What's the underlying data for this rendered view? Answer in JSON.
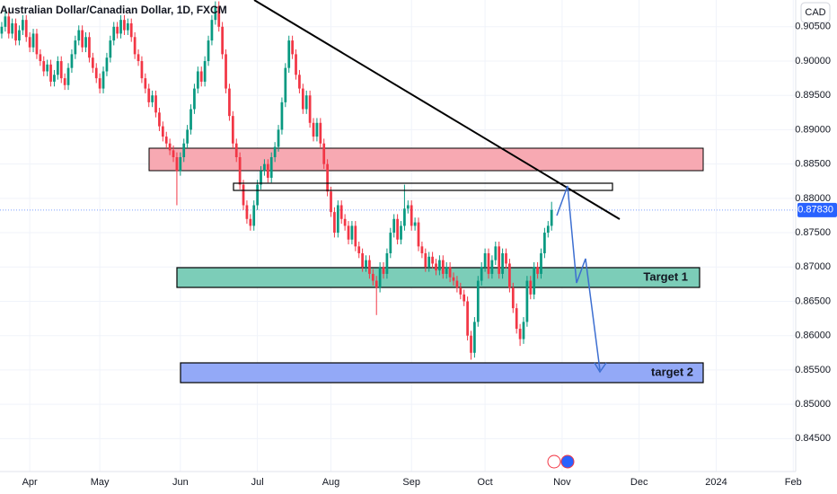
{
  "chart_data": {
    "type": "candlestick",
    "title": "Australian Dollar/Canadian Dollar, 1D, FXCM",
    "currency": "CAD",
    "up_color": "#089981",
    "down_color": "#f23645",
    "grid": true,
    "ylim": [
      0.8402,
      0.9089
    ],
    "yticks": [
      {
        "value": 0.845,
        "label": "0.84500"
      },
      {
        "value": 0.85,
        "label": "0.85000"
      },
      {
        "value": 0.855,
        "label": "0.85500"
      },
      {
        "value": 0.86,
        "label": "0.86000"
      },
      {
        "value": 0.865,
        "label": "0.86500"
      },
      {
        "value": 0.87,
        "label": "0.87000"
      },
      {
        "value": 0.875,
        "label": "0.87500"
      },
      {
        "value": 0.88,
        "label": "0.88000"
      },
      {
        "value": 0.885,
        "label": "0.88500"
      },
      {
        "value": 0.89,
        "label": "0.89000"
      },
      {
        "value": 0.895,
        "label": "0.89500"
      },
      {
        "value": 0.9,
        "label": "0.90000"
      },
      {
        "value": 0.905,
        "label": "0.90500"
      }
    ],
    "xlim": [
      -0.5,
      226.7
    ],
    "xticks": [
      {
        "value": 8,
        "label": "Apr"
      },
      {
        "value": 28,
        "label": "May"
      },
      {
        "value": 51,
        "label": "Jun"
      },
      {
        "value": 73,
        "label": "Jul"
      },
      {
        "value": 94,
        "label": "Aug"
      },
      {
        "value": 117,
        "label": "Sep"
      },
      {
        "value": 138,
        "label": "Oct"
      },
      {
        "value": 160,
        "label": "Nov"
      },
      {
        "value": 182,
        "label": "Dec"
      },
      {
        "value": 204,
        "label": "2024"
      },
      {
        "value": 226,
        "label": "Feb"
      }
    ],
    "last_price": {
      "value": 0.8783,
      "label": "0.87830"
    },
    "annotations": [
      "Target 1",
      "target 2"
    ],
    "candles": [
      [
        0.904,
        0.9057,
        0.9033,
        0.905
      ],
      [
        0.905,
        0.9072,
        0.9043,
        0.9065
      ],
      [
        0.9065,
        0.9072,
        0.9033,
        0.904
      ],
      [
        0.904,
        0.9062,
        0.9033,
        0.9055
      ],
      [
        0.9055,
        0.9062,
        0.9023,
        0.903
      ],
      [
        0.903,
        0.9052,
        0.9023,
        0.9045
      ],
      [
        0.9045,
        0.9067,
        0.9038,
        0.906
      ],
      [
        0.906,
        0.9067,
        0.9028,
        0.9035
      ],
      [
        0.9035,
        0.9042,
        0.9013,
        0.902
      ],
      [
        0.902,
        0.9047,
        0.9013,
        0.904
      ],
      [
        0.904,
        0.9047,
        0.9003,
        0.901
      ],
      [
        0.901,
        0.9017,
        0.8993,
        0.9
      ],
      [
        0.9,
        0.9007,
        0.8978,
        0.8985
      ],
      [
        0.8985,
        0.9002,
        0.8978,
        0.8995
      ],
      [
        0.8995,
        0.9002,
        0.8963,
        0.897
      ],
      [
        0.897,
        0.8987,
        0.8963,
        0.898
      ],
      [
        0.898,
        0.9007,
        0.8973,
        0.9
      ],
      [
        0.9,
        0.9007,
        0.8968,
        0.8975
      ],
      [
        0.8975,
        0.8982,
        0.8958,
        0.8965
      ],
      [
        0.8965,
        0.8997,
        0.8958,
        0.899
      ],
      [
        0.899,
        0.9017,
        0.8983,
        0.901
      ],
      [
        0.901,
        0.9037,
        0.9003,
        0.903
      ],
      [
        0.903,
        0.9052,
        0.9023,
        0.9045
      ],
      [
        0.9045,
        0.9052,
        0.9013,
        0.902
      ],
      [
        0.902,
        0.9042,
        0.9013,
        0.9035
      ],
      [
        0.9035,
        0.9042,
        0.8998,
        0.9005
      ],
      [
        0.9005,
        0.9012,
        0.8983,
        0.899
      ],
      [
        0.899,
        0.8997,
        0.8968,
        0.8975
      ],
      [
        0.8975,
        0.8982,
        0.8953,
        0.896
      ],
      [
        0.896,
        0.8992,
        0.8953,
        0.8985
      ],
      [
        0.8985,
        0.9012,
        0.8978,
        0.9005
      ],
      [
        0.9005,
        0.9037,
        0.8998,
        0.903
      ],
      [
        0.903,
        0.9057,
        0.9023,
        0.905
      ],
      [
        0.905,
        0.9057,
        0.9033,
        0.904
      ],
      [
        0.904,
        0.9067,
        0.9033,
        0.906
      ],
      [
        0.906,
        0.9067,
        0.9038,
        0.9045
      ],
      [
        0.9045,
        0.9062,
        0.9038,
        0.9055
      ],
      [
        0.9055,
        0.9062,
        0.9028,
        0.9035
      ],
      [
        0.9035,
        0.9042,
        0.9003,
        0.901
      ],
      [
        0.901,
        0.9017,
        0.8993,
        0.9
      ],
      [
        0.9,
        0.9007,
        0.8968,
        0.8975
      ],
      [
        0.8975,
        0.8982,
        0.8953,
        0.896
      ],
      [
        0.896,
        0.8967,
        0.8933,
        0.894
      ],
      [
        0.894,
        0.8957,
        0.8933,
        0.895
      ],
      [
        0.895,
        0.8957,
        0.8918,
        0.8925
      ],
      [
        0.8925,
        0.8932,
        0.8898,
        0.8905
      ],
      [
        0.8905,
        0.8912,
        0.8883,
        0.889
      ],
      [
        0.889,
        0.8897,
        0.8873,
        0.888
      ],
      [
        0.888,
        0.8887,
        0.8863,
        0.887
      ],
      [
        0.887,
        0.8877,
        0.8853,
        0.886
      ],
      [
        0.886,
        0.8867,
        0.879,
        0.884
      ],
      [
        0.884,
        0.8867,
        0.8833,
        0.886
      ],
      [
        0.886,
        0.8887,
        0.8853,
        0.888
      ],
      [
        0.888,
        0.8907,
        0.8873,
        0.89
      ],
      [
        0.89,
        0.8937,
        0.8893,
        0.893
      ],
      [
        0.893,
        0.8967,
        0.8923,
        0.896
      ],
      [
        0.896,
        0.8992,
        0.8953,
        0.8985
      ],
      [
        0.8985,
        0.8992,
        0.8963,
        0.897
      ],
      [
        0.897,
        0.9007,
        0.8963,
        0.9
      ],
      [
        0.9,
        0.9037,
        0.8993,
        0.903
      ],
      [
        0.903,
        0.9067,
        0.9023,
        0.906
      ],
      [
        0.906,
        0.9087,
        0.9053,
        0.908
      ],
      [
        0.908,
        0.9087,
        0.9043,
        0.905
      ],
      [
        0.905,
        0.9057,
        0.9003,
        0.901
      ],
      [
        0.901,
        0.9017,
        0.8953,
        0.896
      ],
      [
        0.896,
        0.8967,
        0.8913,
        0.892
      ],
      [
        0.892,
        0.8927,
        0.8873,
        0.888
      ],
      [
        0.888,
        0.8887,
        0.8853,
        0.886
      ],
      [
        0.886,
        0.8867,
        0.8813,
        0.882
      ],
      [
        0.882,
        0.8827,
        0.8783,
        0.879
      ],
      [
        0.879,
        0.8797,
        0.8763,
        0.877
      ],
      [
        0.877,
        0.8777,
        0.8753,
        0.876
      ],
      [
        0.876,
        0.8797,
        0.8753,
        0.879
      ],
      [
        0.879,
        0.8827,
        0.8783,
        0.882
      ],
      [
        0.882,
        0.8847,
        0.8813,
        0.884
      ],
      [
        0.884,
        0.8857,
        0.8833,
        0.885
      ],
      [
        0.885,
        0.8857,
        0.8823,
        0.883
      ],
      [
        0.883,
        0.8867,
        0.8823,
        0.886
      ],
      [
        0.886,
        0.8882,
        0.8853,
        0.8875
      ],
      [
        0.8875,
        0.8907,
        0.8868,
        0.89
      ],
      [
        0.89,
        0.8947,
        0.8893,
        0.894
      ],
      [
        0.894,
        0.8997,
        0.8933,
        0.899
      ],
      [
        0.899,
        0.9037,
        0.8983,
        0.903
      ],
      [
        0.903,
        0.9037,
        0.9003,
        0.901
      ],
      [
        0.901,
        0.9017,
        0.8973,
        0.898
      ],
      [
        0.898,
        0.8987,
        0.8953,
        0.896
      ],
      [
        0.896,
        0.8967,
        0.8923,
        0.893
      ],
      [
        0.893,
        0.8957,
        0.8923,
        0.895
      ],
      [
        0.895,
        0.8957,
        0.8903,
        0.891
      ],
      [
        0.891,
        0.8917,
        0.8883,
        0.889
      ],
      [
        0.889,
        0.8917,
        0.8883,
        0.891
      ],
      [
        0.891,
        0.8917,
        0.8873,
        0.888
      ],
      [
        0.888,
        0.8887,
        0.8843,
        0.885
      ],
      [
        0.885,
        0.8857,
        0.8803,
        0.881
      ],
      [
        0.881,
        0.8817,
        0.8773,
        0.878
      ],
      [
        0.878,
        0.8787,
        0.8743,
        0.875
      ],
      [
        0.875,
        0.8797,
        0.8743,
        0.879
      ],
      [
        0.879,
        0.8797,
        0.8763,
        0.877
      ],
      [
        0.877,
        0.8777,
        0.8753,
        0.876
      ],
      [
        0.876,
        0.8767,
        0.8733,
        0.874
      ],
      [
        0.874,
        0.8767,
        0.8733,
        0.876
      ],
      [
        0.876,
        0.8767,
        0.8723,
        0.873
      ],
      [
        0.873,
        0.8737,
        0.8713,
        0.872
      ],
      [
        0.872,
        0.8727,
        0.8693,
        0.87
      ],
      [
        0.87,
        0.8717,
        0.8693,
        0.871
      ],
      [
        0.871,
        0.8717,
        0.8683,
        0.869
      ],
      [
        0.869,
        0.8697,
        0.8673,
        0.868
      ],
      [
        0.868,
        0.8687,
        0.863,
        0.867
      ],
      [
        0.867,
        0.8707,
        0.8663,
        0.87
      ],
      [
        0.87,
        0.8707,
        0.8683,
        0.869
      ],
      [
        0.869,
        0.8727,
        0.8683,
        0.872
      ],
      [
        0.872,
        0.8757,
        0.8713,
        0.875
      ],
      [
        0.875,
        0.8777,
        0.8743,
        0.877
      ],
      [
        0.877,
        0.8777,
        0.8733,
        0.874
      ],
      [
        0.874,
        0.8767,
        0.8733,
        0.876
      ],
      [
        0.876,
        0.882,
        0.8753,
        0.8785
      ],
      [
        0.8785,
        0.8797,
        0.8778,
        0.879
      ],
      [
        0.879,
        0.8797,
        0.8753,
        0.876
      ],
      [
        0.876,
        0.8772,
        0.8753,
        0.8765
      ],
      [
        0.8765,
        0.8772,
        0.8723,
        0.873
      ],
      [
        0.873,
        0.8737,
        0.8713,
        0.872
      ],
      [
        0.872,
        0.8727,
        0.8693,
        0.87
      ],
      [
        0.87,
        0.8722,
        0.8693,
        0.8715
      ],
      [
        0.8715,
        0.8722,
        0.8698,
        0.8705
      ],
      [
        0.8705,
        0.8712,
        0.8688,
        0.8695
      ],
      [
        0.8695,
        0.8717,
        0.8688,
        0.871
      ],
      [
        0.871,
        0.8717,
        0.8683,
        0.869
      ],
      [
        0.869,
        0.8707,
        0.8683,
        0.87
      ],
      [
        0.87,
        0.8707,
        0.8678,
        0.8685
      ],
      [
        0.8685,
        0.8692,
        0.8673,
        0.868
      ],
      [
        0.868,
        0.8687,
        0.8663,
        0.867
      ],
      [
        0.867,
        0.8677,
        0.8653,
        0.866
      ],
      [
        0.866,
        0.8667,
        0.8643,
        0.865
      ],
      [
        0.865,
        0.8657,
        0.8593,
        0.86
      ],
      [
        0.86,
        0.8607,
        0.8565,
        0.8575
      ],
      [
        0.8575,
        0.8627,
        0.8568,
        0.862
      ],
      [
        0.862,
        0.8687,
        0.8613,
        0.868
      ],
      [
        0.868,
        0.8707,
        0.8673,
        0.87
      ],
      [
        0.87,
        0.8727,
        0.8693,
        0.872
      ],
      [
        0.872,
        0.8727,
        0.8683,
        0.869
      ],
      [
        0.869,
        0.8717,
        0.8683,
        0.871
      ],
      [
        0.871,
        0.8737,
        0.8703,
        0.873
      ],
      [
        0.873,
        0.8737,
        0.8683,
        0.869
      ],
      [
        0.869,
        0.8727,
        0.8683,
        0.872
      ],
      [
        0.872,
        0.8727,
        0.8698,
        0.8705
      ],
      [
        0.8705,
        0.8712,
        0.8663,
        0.867
      ],
      [
        0.867,
        0.8677,
        0.8633,
        0.864
      ],
      [
        0.864,
        0.8647,
        0.8603,
        0.861
      ],
      [
        0.861,
        0.8617,
        0.8585,
        0.8595
      ],
      [
        0.8595,
        0.8627,
        0.8588,
        0.862
      ],
      [
        0.862,
        0.8687,
        0.8613,
        0.868
      ],
      [
        0.868,
        0.8687,
        0.8653,
        0.866
      ],
      [
        0.866,
        0.8707,
        0.8653,
        0.87
      ],
      [
        0.87,
        0.8707,
        0.8683,
        0.869
      ],
      [
        0.869,
        0.8727,
        0.8683,
        0.872
      ],
      [
        0.872,
        0.8757,
        0.8713,
        0.875
      ],
      [
        0.875,
        0.8767,
        0.8743,
        0.876
      ],
      [
        0.876,
        0.8795,
        0.8753,
        0.8783
      ]
    ]
  }
}
